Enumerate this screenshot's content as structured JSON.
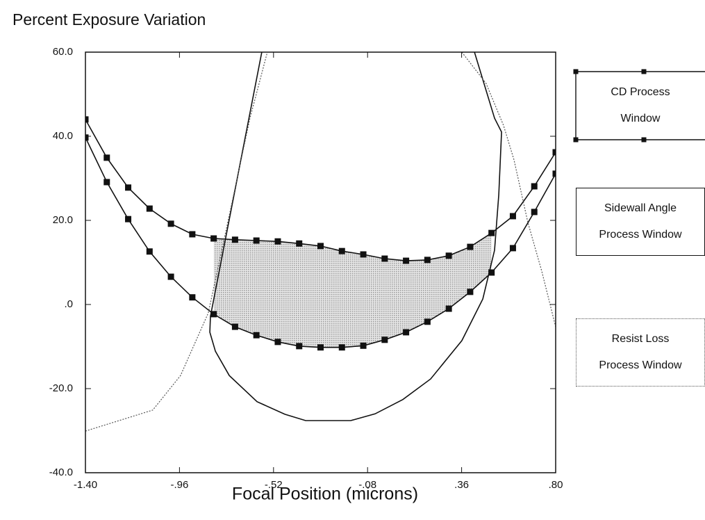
{
  "chart_data": {
    "type": "line",
    "title": "Percent Exposure Variation",
    "x_label": "Focal Position (microns)",
    "xlim": [
      -1.4,
      0.8
    ],
    "ylim": [
      -40,
      60
    ],
    "xticks": [
      {
        "value": -1.4,
        "label": "-1.40"
      },
      {
        "value": -0.96,
        "label": "-.96"
      },
      {
        "value": -0.52,
        "label": "-.52"
      },
      {
        "value": -0.08,
        "label": "-.08"
      },
      {
        "value": 0.36,
        "label": ".36"
      },
      {
        "value": 0.8,
        "label": ".80"
      }
    ],
    "yticks": [
      {
        "value": -40,
        "label": "-40.0"
      },
      {
        "value": -20,
        "label": "-20.0"
      },
      {
        "value": 0,
        "label": ".0"
      },
      {
        "value": 20,
        "label": "20.0"
      },
      {
        "value": 40,
        "label": "40.0"
      },
      {
        "value": 60,
        "label": "60.0"
      }
    ],
    "x": [
      -1.4,
      -1.3,
      -1.2,
      -1.1,
      -1.0,
      -0.9,
      -0.8,
      -0.7,
      -0.6,
      -0.5,
      -0.4,
      -0.3,
      -0.2,
      -0.1,
      0.0,
      0.1,
      0.2,
      0.3,
      0.4,
      0.5,
      0.6,
      0.7,
      0.8
    ],
    "series": [
      {
        "name": "CD Process Window",
        "color": "#111111",
        "line": "solid",
        "marker": "square",
        "values": [
          44.0,
          34.9,
          27.8,
          22.8,
          19.2,
          16.7,
          15.7,
          15.4,
          15.2,
          15.0,
          14.5,
          13.9,
          12.7,
          11.9,
          10.9,
          10.4,
          10.6,
          11.6,
          13.7,
          17.0,
          21.0,
          28.1,
          36.2
        ],
        "lower": [
          39.7,
          29.1,
          20.3,
          12.6,
          6.6,
          1.7,
          -2.3,
          -5.3,
          -7.3,
          -8.9,
          -9.9,
          -10.2,
          -10.2,
          -9.8,
          -8.4,
          -6.6,
          -4.1,
          -1.0,
          3.0,
          7.6,
          13.4,
          22.0,
          31.1
        ]
      },
      {
        "name": "Sidewall Angle Process Window",
        "color": "#111111",
        "line": "solid",
        "x": [
          -0.575,
          -0.815,
          -0.818,
          -0.792,
          -0.727,
          -0.597,
          -0.467,
          -0.37,
          -0.159,
          -0.045,
          0.085,
          0.215,
          0.361,
          0.459,
          0.514,
          0.534,
          0.547,
          0.514,
          0.42
        ],
        "values": [
          60,
          -2.8,
          -6.6,
          -11.1,
          -16.9,
          -23.1,
          -26.1,
          -27.6,
          -27.6,
          -26.0,
          -22.6,
          -17.7,
          -8.6,
          1.3,
          12.9,
          26.1,
          41.0,
          44.3,
          60
        ]
      },
      {
        "name": "Resist Loss Process Window",
        "color": "#555555",
        "line": "dotted",
        "x": [
          -1.4,
          -1.085,
          -0.955,
          -0.825,
          -0.727,
          -0.63,
          -0.549,
          null,
          0.361,
          0.474,
          0.556,
          0.605,
          0.67,
          0.735,
          0.8
        ],
        "values": [
          -30.1,
          -25.1,
          -16.9,
          -2.0,
          21.2,
          44.3,
          60,
          null,
          60,
          52.6,
          42.6,
          34.4,
          19.5,
          7.9,
          -5.3
        ]
      }
    ],
    "shade_color": "#c8c8c8"
  }
}
